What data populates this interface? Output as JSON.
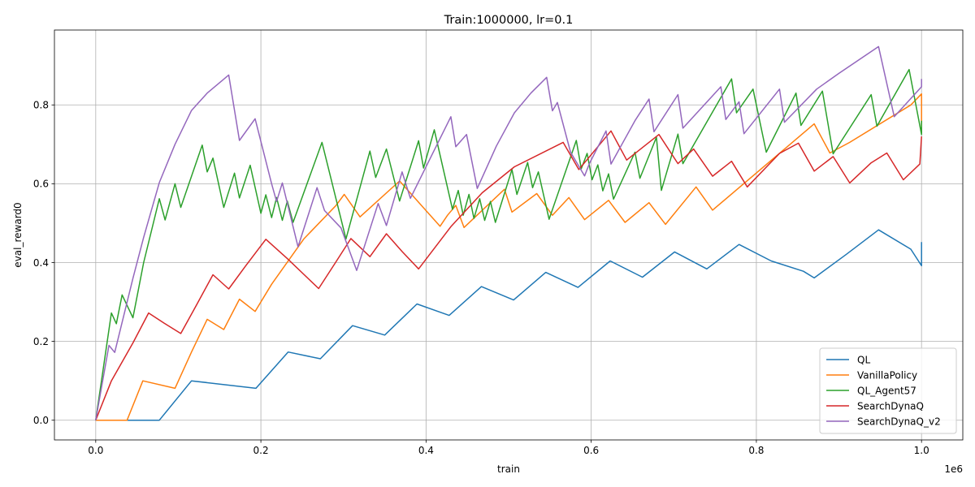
{
  "chart_data": {
    "type": "line",
    "title": "Train:1000000, lr=0.1",
    "xlabel": "train",
    "ylabel": "eval_reward0",
    "x_offset_label": "1e6",
    "xlim": [
      -0.05,
      1.05
    ],
    "ylim": [
      -0.05,
      0.99
    ],
    "xticks": [
      0.0,
      0.2,
      0.4,
      0.6,
      0.8,
      1.0
    ],
    "xtick_labels": [
      "0.0",
      "0.2",
      "0.4",
      "0.6",
      "0.8",
      "1.0"
    ],
    "yticks": [
      0.0,
      0.2,
      0.4,
      0.6,
      0.8
    ],
    "ytick_labels": [
      "0.0",
      "0.2",
      "0.4",
      "0.6",
      "0.8"
    ],
    "grid": true,
    "legend_position": "lower-right",
    "series": [
      {
        "name": "QL",
        "color": "#1f77b4",
        "points": [
          [
            0.0,
            0.0
          ],
          [
            0.077,
            0.0
          ],
          [
            0.116,
            0.1
          ],
          [
            0.194,
            0.081
          ],
          [
            0.233,
            0.173
          ],
          [
            0.272,
            0.156
          ],
          [
            0.311,
            0.24
          ],
          [
            0.35,
            0.216
          ],
          [
            0.389,
            0.295
          ],
          [
            0.428,
            0.266
          ],
          [
            0.467,
            0.339
          ],
          [
            0.506,
            0.305
          ],
          [
            0.545,
            0.375
          ],
          [
            0.584,
            0.337
          ],
          [
            0.623,
            0.404
          ],
          [
            0.662,
            0.363
          ],
          [
            0.701,
            0.427
          ],
          [
            0.74,
            0.384
          ],
          [
            0.779,
            0.446
          ],
          [
            0.818,
            0.404
          ],
          [
            0.857,
            0.378
          ],
          [
            0.87,
            0.361
          ],
          [
            0.909,
            0.421
          ],
          [
            0.948,
            0.483
          ],
          [
            0.987,
            0.434
          ],
          [
            1.0,
            0.392
          ],
          [
            1.0,
            0.452
          ]
        ]
      },
      {
        "name": "VanillaPolicy",
        "color": "#ff7f0e",
        "points": [
          [
            0.0,
            0.0
          ],
          [
            0.038,
            0.0
          ],
          [
            0.057,
            0.1
          ],
          [
            0.096,
            0.081
          ],
          [
            0.116,
            0.173
          ],
          [
            0.135,
            0.256
          ],
          [
            0.155,
            0.23
          ],
          [
            0.174,
            0.307
          ],
          [
            0.193,
            0.276
          ],
          [
            0.213,
            0.345
          ],
          [
            0.252,
            0.46
          ],
          [
            0.291,
            0.545
          ],
          [
            0.301,
            0.573
          ],
          [
            0.32,
            0.516
          ],
          [
            0.368,
            0.607
          ],
          [
            0.417,
            0.492
          ],
          [
            0.426,
            0.52
          ],
          [
            0.436,
            0.545
          ],
          [
            0.446,
            0.489
          ],
          [
            0.495,
            0.586
          ],
          [
            0.504,
            0.528
          ],
          [
            0.534,
            0.575
          ],
          [
            0.553,
            0.52
          ],
          [
            0.573,
            0.565
          ],
          [
            0.592,
            0.509
          ],
          [
            0.621,
            0.558
          ],
          [
            0.641,
            0.502
          ],
          [
            0.67,
            0.552
          ],
          [
            0.69,
            0.497
          ],
          [
            0.727,
            0.592
          ],
          [
            0.747,
            0.533
          ],
          [
            0.87,
            0.752
          ],
          [
            0.889,
            0.678
          ],
          [
            0.913,
            0.705
          ],
          [
            0.987,
            0.8
          ],
          [
            1.0,
            0.828
          ],
          [
            1.0,
            0.73
          ]
        ]
      },
      {
        "name": "QL_Agent57",
        "color": "#2ca02c",
        "points": [
          [
            0.0,
            0.0
          ],
          [
            0.019,
            0.272
          ],
          [
            0.025,
            0.245
          ],
          [
            0.032,
            0.318
          ],
          [
            0.045,
            0.26
          ],
          [
            0.058,
            0.4
          ],
          [
            0.077,
            0.562
          ],
          [
            0.084,
            0.508
          ],
          [
            0.096,
            0.6
          ],
          [
            0.103,
            0.54
          ],
          [
            0.129,
            0.698
          ],
          [
            0.135,
            0.63
          ],
          [
            0.142,
            0.665
          ],
          [
            0.155,
            0.54
          ],
          [
            0.168,
            0.627
          ],
          [
            0.174,
            0.564
          ],
          [
            0.187,
            0.647
          ],
          [
            0.2,
            0.525
          ],
          [
            0.206,
            0.572
          ],
          [
            0.213,
            0.514
          ],
          [
            0.219,
            0.565
          ],
          [
            0.226,
            0.507
          ],
          [
            0.232,
            0.556
          ],
          [
            0.239,
            0.502
          ],
          [
            0.274,
            0.705
          ],
          [
            0.303,
            0.46
          ],
          [
            0.332,
            0.683
          ],
          [
            0.339,
            0.616
          ],
          [
            0.352,
            0.688
          ],
          [
            0.368,
            0.556
          ],
          [
            0.391,
            0.709
          ],
          [
            0.397,
            0.64
          ],
          [
            0.41,
            0.737
          ],
          [
            0.432,
            0.535
          ],
          [
            0.439,
            0.583
          ],
          [
            0.445,
            0.52
          ],
          [
            0.452,
            0.573
          ],
          [
            0.458,
            0.512
          ],
          [
            0.465,
            0.562
          ],
          [
            0.471,
            0.507
          ],
          [
            0.478,
            0.555
          ],
          [
            0.484,
            0.502
          ],
          [
            0.504,
            0.636
          ],
          [
            0.51,
            0.573
          ],
          [
            0.523,
            0.654
          ],
          [
            0.529,
            0.59
          ],
          [
            0.536,
            0.63
          ],
          [
            0.549,
            0.51
          ],
          [
            0.582,
            0.71
          ],
          [
            0.588,
            0.638
          ],
          [
            0.595,
            0.677
          ],
          [
            0.601,
            0.61
          ],
          [
            0.608,
            0.648
          ],
          [
            0.614,
            0.582
          ],
          [
            0.621,
            0.625
          ],
          [
            0.627,
            0.561
          ],
          [
            0.653,
            0.68
          ],
          [
            0.659,
            0.614
          ],
          [
            0.679,
            0.718
          ],
          [
            0.685,
            0.583
          ],
          [
            0.705,
            0.726
          ],
          [
            0.711,
            0.651
          ],
          [
            0.77,
            0.866
          ],
          [
            0.776,
            0.78
          ],
          [
            0.796,
            0.84
          ],
          [
            0.812,
            0.68
          ],
          [
            0.848,
            0.83
          ],
          [
            0.854,
            0.748
          ],
          [
            0.88,
            0.835
          ],
          [
            0.893,
            0.676
          ],
          [
            0.939,
            0.826
          ],
          [
            0.946,
            0.746
          ],
          [
            0.985,
            0.89
          ],
          [
            1.0,
            0.725
          ],
          [
            1.0,
            0.76
          ]
        ]
      },
      {
        "name": "SearchDynaQ",
        "color": "#d62728",
        "points": [
          [
            0.0,
            0.0
          ],
          [
            0.019,
            0.1
          ],
          [
            0.045,
            0.196
          ],
          [
            0.064,
            0.272
          ],
          [
            0.083,
            0.246
          ],
          [
            0.103,
            0.22
          ],
          [
            0.122,
            0.292
          ],
          [
            0.142,
            0.369
          ],
          [
            0.161,
            0.333
          ],
          [
            0.181,
            0.39
          ],
          [
            0.206,
            0.459
          ],
          [
            0.232,
            0.41
          ],
          [
            0.27,
            0.334
          ],
          [
            0.29,
            0.399
          ],
          [
            0.309,
            0.461
          ],
          [
            0.332,
            0.415
          ],
          [
            0.352,
            0.473
          ],
          [
            0.371,
            0.428
          ],
          [
            0.391,
            0.384
          ],
          [
            0.43,
            0.491
          ],
          [
            0.468,
            0.577
          ],
          [
            0.507,
            0.643
          ],
          [
            0.566,
            0.705
          ],
          [
            0.585,
            0.636
          ],
          [
            0.624,
            0.734
          ],
          [
            0.643,
            0.66
          ],
          [
            0.682,
            0.725
          ],
          [
            0.705,
            0.651
          ],
          [
            0.724,
            0.688
          ],
          [
            0.747,
            0.619
          ],
          [
            0.77,
            0.657
          ],
          [
            0.789,
            0.592
          ],
          [
            0.828,
            0.677
          ],
          [
            0.851,
            0.703
          ],
          [
            0.87,
            0.632
          ],
          [
            0.893,
            0.669
          ],
          [
            0.913,
            0.602
          ],
          [
            0.939,
            0.653
          ],
          [
            0.958,
            0.678
          ],
          [
            0.978,
            0.61
          ],
          [
            0.998,
            0.65
          ],
          [
            1.0,
            0.72
          ]
        ]
      },
      {
        "name": "SearchDynaQ_v2",
        "color": "#9467bd",
        "points": [
          [
            0.0,
            0.0
          ],
          [
            0.016,
            0.19
          ],
          [
            0.023,
            0.172
          ],
          [
            0.045,
            0.36
          ],
          [
            0.058,
            0.464
          ],
          [
            0.077,
            0.603
          ],
          [
            0.096,
            0.7
          ],
          [
            0.116,
            0.786
          ],
          [
            0.135,
            0.83
          ],
          [
            0.161,
            0.876
          ],
          [
            0.174,
            0.71
          ],
          [
            0.193,
            0.765
          ],
          [
            0.213,
            0.6
          ],
          [
            0.219,
            0.555
          ],
          [
            0.226,
            0.602
          ],
          [
            0.245,
            0.44
          ],
          [
            0.268,
            0.59
          ],
          [
            0.277,
            0.532
          ],
          [
            0.297,
            0.488
          ],
          [
            0.316,
            0.38
          ],
          [
            0.342,
            0.55
          ],
          [
            0.352,
            0.494
          ],
          [
            0.371,
            0.63
          ],
          [
            0.381,
            0.563
          ],
          [
            0.43,
            0.77
          ],
          [
            0.436,
            0.694
          ],
          [
            0.449,
            0.725
          ],
          [
            0.462,
            0.588
          ],
          [
            0.485,
            0.695
          ],
          [
            0.507,
            0.78
          ],
          [
            0.527,
            0.83
          ],
          [
            0.546,
            0.87
          ],
          [
            0.553,
            0.785
          ],
          [
            0.559,
            0.806
          ],
          [
            0.575,
            0.68
          ],
          [
            0.592,
            0.62
          ],
          [
            0.598,
            0.652
          ],
          [
            0.618,
            0.734
          ],
          [
            0.624,
            0.65
          ],
          [
            0.653,
            0.76
          ],
          [
            0.67,
            0.815
          ],
          [
            0.676,
            0.732
          ],
          [
            0.705,
            0.826
          ],
          [
            0.711,
            0.741
          ],
          [
            0.757,
            0.846
          ],
          [
            0.763,
            0.763
          ],
          [
            0.779,
            0.808
          ],
          [
            0.785,
            0.727
          ],
          [
            0.828,
            0.84
          ],
          [
            0.834,
            0.756
          ],
          [
            0.873,
            0.84
          ],
          [
            0.9,
            0.88
          ],
          [
            0.948,
            0.948
          ],
          [
            0.967,
            0.77
          ],
          [
            1.0,
            0.846
          ],
          [
            1.0,
            0.866
          ]
        ]
      }
    ]
  }
}
